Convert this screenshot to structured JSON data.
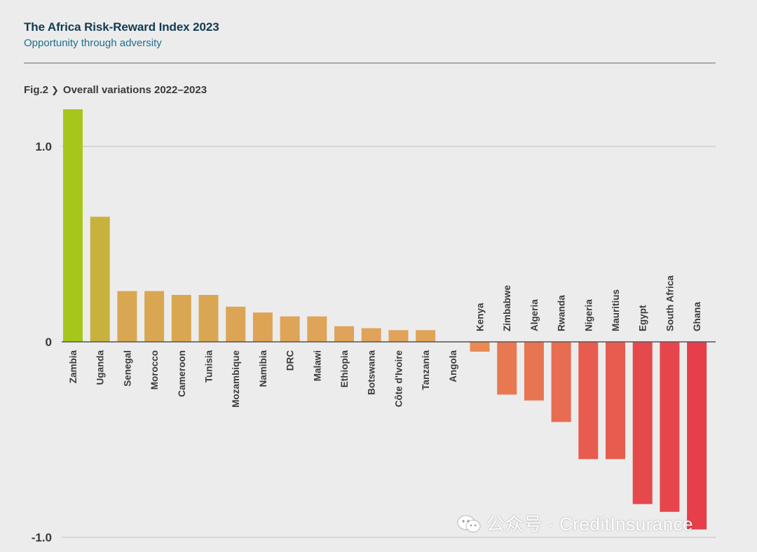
{
  "header": {
    "title": "The Africa Risk-Reward Index 2023",
    "subtitle": "Opportunity through adversity"
  },
  "figure": {
    "number": "Fig.2",
    "caption": "Overall variations 2022–2023"
  },
  "watermark": {
    "text": "公众号 · CreditInsurance",
    "icon": "wechat-icon"
  },
  "chart_data": {
    "type": "bar",
    "title": "Overall variations 2022–2023",
    "xlabel": "",
    "ylabel": "",
    "ylim": [
      -1.0,
      1.2
    ],
    "yticks": [
      {
        "value": 1.0,
        "label": "1.0"
      },
      {
        "value": 0,
        "label": "0"
      },
      {
        "value": -1.0,
        "label": "-1.0"
      }
    ],
    "grid": true,
    "legend": "none",
    "color_scale": {
      "positive_high": "#a7c61b",
      "positive_low": "#e1a25a",
      "negative_low": "#e98a55",
      "negative_high": "#e63e4a"
    },
    "categories": [
      "Zambia",
      "Uganda",
      "Senegal",
      "Morocco",
      "Cameroon",
      "Tunisia",
      "Mozambique",
      "Namibia",
      "DRC",
      "Malawi",
      "Ethiopia",
      "Botswana",
      "Côte d'Ivoire",
      "Tanzania",
      "Angola",
      "Kenya",
      "Zimbabwe",
      "Algeria",
      "Rwanda",
      "Nigeria",
      "Mauritius",
      "Egypt",
      "South Africa",
      "Ghana"
    ],
    "values": [
      1.19,
      0.64,
      0.26,
      0.26,
      0.24,
      0.24,
      0.18,
      0.15,
      0.13,
      0.13,
      0.08,
      0.07,
      0.06,
      0.06,
      0.0,
      -0.05,
      -0.27,
      -0.3,
      -0.41,
      -0.6,
      -0.6,
      -0.83,
      -0.87,
      -0.96
    ]
  }
}
